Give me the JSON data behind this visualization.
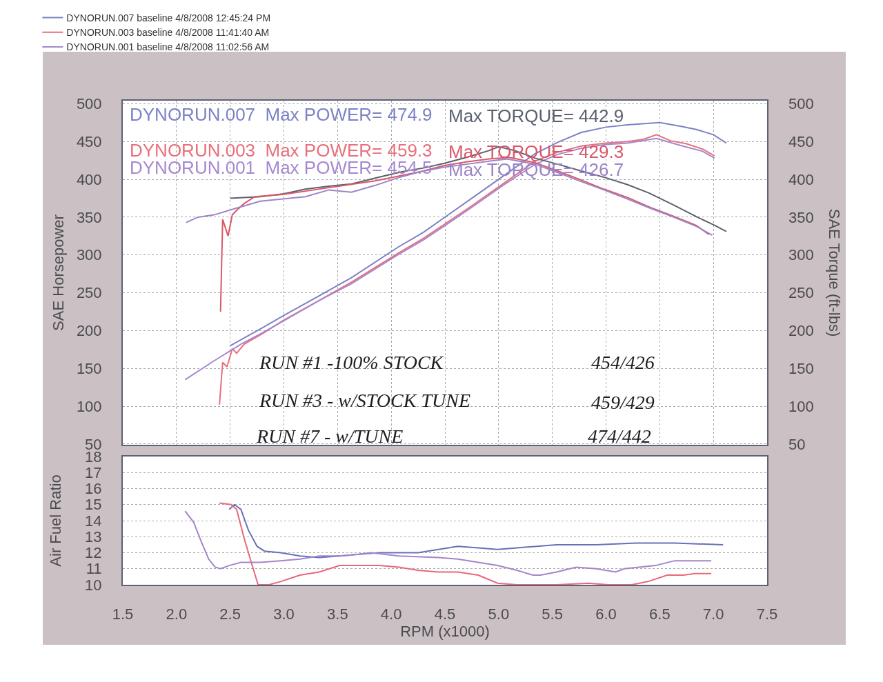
{
  "chart_data": [
    {
      "type": "line",
      "legend": "top left",
      "grid": true,
      "tick_labels": "y",
      "ylabel": "SAE Horsepower",
      "y2label": "SAE Torque (ft-lbs)",
      "xlim": [
        1.5,
        7.5
      ],
      "xticks": [
        1.5,
        2,
        2.5,
        3,
        3.5,
        4,
        4.5,
        5,
        5.5,
        6,
        6.5,
        7,
        7.5
      ],
      "ylim": [
        49,
        504
      ],
      "yticks": [
        50,
        100,
        150,
        200,
        250,
        300,
        350,
        400,
        450,
        500
      ],
      "y2lim": [
        49,
        504
      ],
      "y2ticks": [
        50,
        100,
        150,
        200,
        250,
        300,
        350,
        400,
        450,
        500
      ],
      "series": [
        {
          "name": "DYNORUN.007 baseline 4/8/2008 12:45:24 PM",
          "color": "#7b82c6",
          "x": [
            2.5,
            2.78,
            3.0,
            3.33,
            3.63,
            4.06,
            4.3,
            4.49,
            4.74,
            5.04,
            5.34,
            5.55,
            5.77,
            6.0,
            6.2,
            6.5,
            6.7,
            6.84,
            7.0,
            7.12
          ],
          "values": [
            180,
            202,
            220,
            246,
            270,
            310,
            330,
            349,
            374,
            404,
            434,
            449,
            462,
            469,
            472,
            475,
            470,
            466,
            459,
            448
          ]
        },
        {
          "color": "#5b6070",
          "axis": "y2",
          "x": [
            2.5,
            2.78,
            3.0,
            3.2,
            3.42,
            3.63,
            3.89,
            4.1,
            4.3,
            4.49,
            4.7,
            4.91,
            5.0,
            5.15,
            5.34,
            5.55,
            5.77,
            6.0,
            6.2,
            6.4,
            6.63,
            6.85,
            7.0,
            7.12
          ],
          "values": [
            375,
            377,
            381,
            387,
            391,
            394,
            403,
            410,
            415,
            421,
            429,
            438,
            443,
            438,
            428,
            420,
            411,
            402,
            393,
            382,
            366,
            350,
            340,
            331
          ]
        },
        {
          "name": "DYNORUN.003 baseline 4/8/2008 11:41:40 AM",
          "color": "#e8707c",
          "x": [
            2.4,
            2.43,
            2.47,
            2.52,
            2.56,
            2.63,
            2.8,
            3.0,
            3.33,
            3.63,
            4.06,
            4.3,
            4.49,
            4.74,
            5.04,
            5.34,
            5.55,
            5.77,
            6.0,
            6.2,
            6.35,
            6.47,
            6.6,
            6.75,
            6.9,
            7.01
          ],
          "values": [
            102,
            158,
            152,
            176,
            170,
            182,
            196,
            214,
            240,
            264,
            302,
            322,
            340,
            364,
            394,
            424,
            436,
            444,
            448,
            450,
            453,
            459,
            451,
            447,
            440,
            431
          ]
        },
        {
          "color": "#d95868",
          "axis": "y2",
          "x": [
            2.41,
            2.43,
            2.48,
            2.52,
            2.56,
            2.63,
            2.73,
            2.99,
            3.42,
            3.85,
            4.27,
            4.49,
            4.7,
            4.91,
            5.1,
            5.34,
            5.55,
            5.77,
            5.98,
            6.2,
            6.41,
            6.63,
            6.84,
            6.96
          ],
          "values": [
            225,
            347,
            325,
            353,
            359,
            368,
            377,
            380,
            389,
            398,
            410,
            418,
            423,
            427,
            429,
            422,
            411,
            399,
            387,
            376,
            363,
            351,
            339,
            327
          ]
        },
        {
          "name": "DYNORUN.001 baseline 4/8/2008 11:02:56 AM",
          "color": "#a688d0",
          "x": [
            2.08,
            2.35,
            2.6,
            2.8,
            3.0,
            3.33,
            3.63,
            4.06,
            4.3,
            4.49,
            4.74,
            5.04,
            5.34,
            5.55,
            5.77,
            6.0,
            6.2,
            6.47,
            6.69,
            6.9,
            7.01
          ],
          "values": [
            135,
            160,
            182,
            197,
            213,
            240,
            262,
            300,
            320,
            338,
            362,
            392,
            420,
            433,
            441,
            446,
            448,
            454,
            445,
            437,
            428
          ]
        },
        {
          "color": "#9c84c8",
          "axis": "y2",
          "x": [
            2.09,
            2.2,
            2.35,
            2.56,
            2.78,
            3.2,
            3.42,
            3.63,
            3.85,
            4.06,
            4.27,
            4.49,
            4.7,
            4.91,
            5.08,
            5.34,
            5.55,
            5.77,
            5.98,
            6.2,
            6.41,
            6.63,
            6.84,
            6.99
          ],
          "values": [
            343,
            350,
            353,
            362,
            371,
            377,
            386,
            383,
            392,
            402,
            410,
            416,
            420,
            424,
            427,
            420,
            409,
            397,
            386,
            374,
            362,
            350,
            338,
            326
          ]
        }
      ],
      "annotations": [
        "DYNORUN.007  Max POWER= 474.9",
        "Max TORQUE= 442.9",
        "DYNORUN.003  Max POWER= 459.3",
        "Max TORQUE= 429.3",
        "DYNORUN.001  Max POWER= 454.5",
        "Max TORQUE= 426.7",
        "RUN #1 -100% STOCK",
        "454/426",
        "RUN #3 - w/STOCK TUNE",
        "459/429",
        "RUN #7 - w/TUNE",
        "474/442"
      ]
    },
    {
      "type": "line",
      "grid": "y",
      "xlabel": "RPM (x1000)",
      "ylabel": "Air Fuel Ratio",
      "xlim": [
        1.5,
        7.5
      ],
      "xticks": [
        1.5,
        {
          "value": 2,
          "label": "2.0"
        },
        2.5,
        {
          "value": 3,
          "label": "3.0"
        },
        3.5,
        {
          "value": 4,
          "label": "4.0"
        },
        4.5,
        {
          "value": 5,
          "label": "5.0"
        },
        5.5,
        {
          "value": 6,
          "label": "6.0"
        },
        6.5,
        {
          "value": 7,
          "label": "7.0"
        },
        7.5
      ],
      "ylim": [
        10,
        18
      ],
      "yticks": [
        10,
        11,
        12,
        13,
        14,
        15,
        16,
        17,
        18
      ],
      "series": [
        {
          "color": "#6870b8",
          "x": [
            2.49,
            2.54,
            2.6,
            2.67,
            2.75,
            2.82,
            2.97,
            3.15,
            3.33,
            3.52,
            3.7,
            3.89,
            4.07,
            4.25,
            4.44,
            4.62,
            4.81,
            4.99,
            5.17,
            5.54,
            5.91,
            6.28,
            6.64,
            7.09
          ],
          "values": [
            14.7,
            15.0,
            14.7,
            13.4,
            12.4,
            12.1,
            12.0,
            11.8,
            11.7,
            11.8,
            11.9,
            12.0,
            12.0,
            12.0,
            12.2,
            12.4,
            12.3,
            12.2,
            12.3,
            12.5,
            12.5,
            12.6,
            12.6,
            12.5
          ]
        },
        {
          "color": "#e86878",
          "x": [
            2.4,
            2.51,
            2.56,
            2.63,
            2.71,
            2.76,
            2.86,
            2.97,
            3.15,
            3.33,
            3.52,
            3.7,
            3.89,
            4.07,
            4.25,
            4.44,
            4.62,
            4.81,
            4.99,
            5.17,
            5.54,
            5.84,
            6.02,
            6.24,
            6.39,
            6.57,
            6.72,
            6.83,
            6.98
          ],
          "values": [
            15.1,
            15.0,
            14.7,
            12.9,
            11.1,
            10.0,
            10.0,
            10.2,
            10.6,
            10.8,
            11.2,
            11.2,
            11.2,
            11.1,
            10.9,
            10.8,
            10.8,
            10.6,
            10.1,
            10.0,
            10.0,
            10.1,
            10.0,
            10.0,
            10.2,
            10.6,
            10.6,
            10.7,
            10.7
          ]
        },
        {
          "color": "#a484cc",
          "x": [
            2.08,
            2.16,
            2.23,
            2.3,
            2.36,
            2.41,
            2.49,
            2.6,
            2.78,
            2.97,
            3.15,
            3.33,
            3.52,
            3.7,
            3.81,
            4.07,
            4.44,
            4.62,
            4.81,
            4.99,
            5.17,
            5.32,
            5.39,
            5.54,
            5.72,
            5.91,
            6.09,
            6.17,
            6.46,
            6.64,
            6.83,
            6.98
          ],
          "values": [
            14.6,
            13.9,
            12.7,
            11.6,
            11.1,
            11.0,
            11.2,
            11.4,
            11.4,
            11.5,
            11.6,
            11.8,
            11.8,
            11.9,
            12.0,
            11.8,
            11.7,
            11.6,
            11.4,
            11.2,
            10.9,
            10.6,
            10.6,
            10.8,
            11.1,
            11.0,
            10.8,
            11.0,
            11.2,
            11.5,
            11.5,
            11.5
          ]
        }
      ]
    }
  ]
}
